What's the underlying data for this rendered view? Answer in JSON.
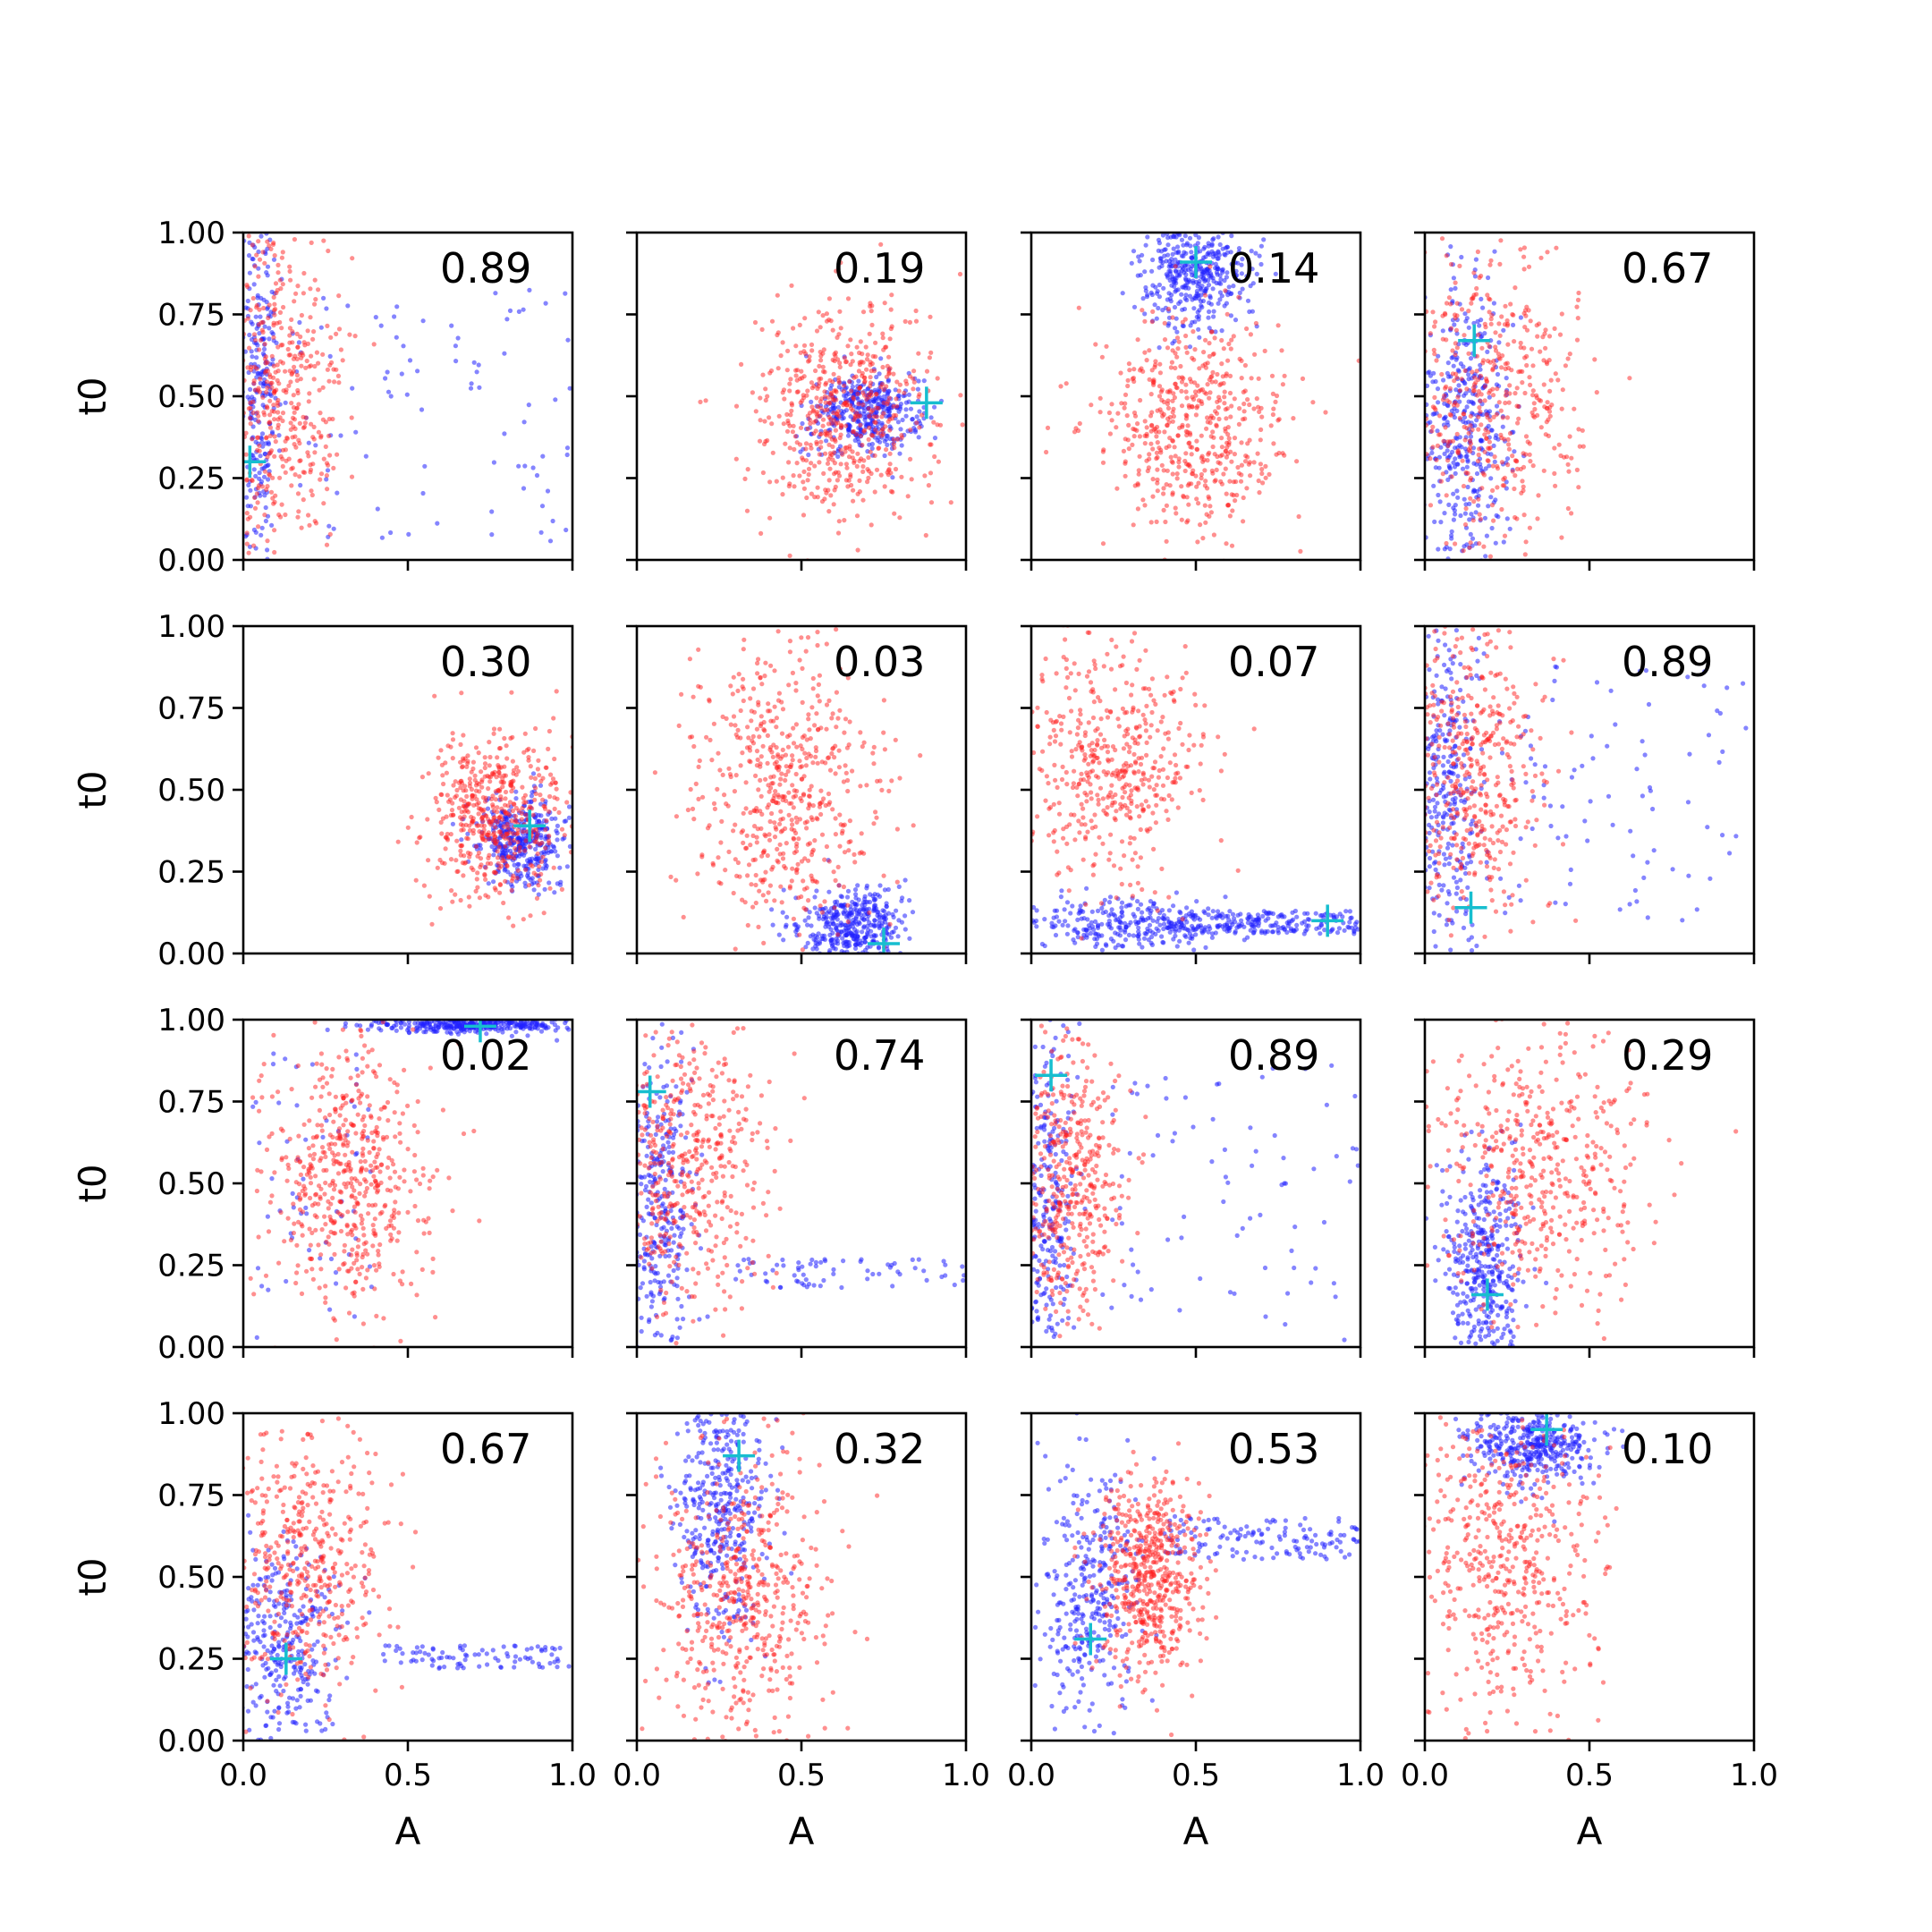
{
  "figure": {
    "title": "",
    "xlabel": "A",
    "ylabel": "t0"
  },
  "colors": {
    "series_red": "#ff2020",
    "series_blue": "#2020ff",
    "marker": "#17becf"
  },
  "chart_data": [
    {
      "type": "scatter",
      "value_label": "0.89",
      "xlim": [
        0,
        1
      ],
      "ylim": [
        0,
        1
      ],
      "xticks": [
        "0.0",
        "0.5",
        "1.0"
      ],
      "yticks": [
        "0.00",
        "0.25",
        "0.50",
        "0.75",
        "1.00"
      ],
      "xlabel": "A",
      "ylabel": "t0",
      "marker": {
        "x": 0.02,
        "y": 0.3
      },
      "red": {
        "x_mean": 0.11,
        "x_sd": 0.09,
        "y_mean": 0.5,
        "y_sd": 0.24,
        "n": 450
      },
      "blue": {
        "x_mean": 0.05,
        "x_sd": 0.03,
        "y_mean": 0.55,
        "y_sd": 0.28,
        "n": 240,
        "tail": {
          "n": 90,
          "x_range": [
            0.15,
            1.0
          ],
          "y_range": [
            0.05,
            0.85
          ]
        }
      }
    },
    {
      "type": "scatter",
      "value_label": "0.19",
      "xlim": [
        0,
        1
      ],
      "ylim": [
        0,
        1
      ],
      "xticks": [
        "0.0",
        "0.5",
        "1.0"
      ],
      "yticks": [
        "0.00",
        "0.25",
        "0.50",
        "0.75",
        "1.00"
      ],
      "xlabel": "A",
      "ylabel": "t0",
      "marker": {
        "x": 0.88,
        "y": 0.48
      },
      "red": {
        "x_mean": 0.62,
        "x_sd": 0.13,
        "y_mean": 0.45,
        "y_sd": 0.16,
        "n": 560
      },
      "blue": {
        "x_mean": 0.7,
        "x_sd": 0.08,
        "y_mean": 0.45,
        "y_sd": 0.06,
        "n": 380
      }
    },
    {
      "type": "scatter",
      "value_label": "0.14",
      "xlim": [
        0,
        1
      ],
      "ylim": [
        0,
        1
      ],
      "xticks": [
        "0.0",
        "0.5",
        "1.0"
      ],
      "yticks": [
        "0.00",
        "0.25",
        "0.50",
        "0.75",
        "1.00"
      ],
      "xlabel": "A",
      "ylabel": "t0",
      "marker": {
        "x": 0.5,
        "y": 0.91
      },
      "red": {
        "x_mean": 0.48,
        "x_sd": 0.14,
        "y_mean": 0.4,
        "y_sd": 0.17,
        "n": 540
      },
      "blue": {
        "x_mean": 0.5,
        "x_sd": 0.08,
        "y_mean": 0.88,
        "y_sd": 0.08,
        "n": 420
      }
    },
    {
      "type": "scatter",
      "value_label": "0.67",
      "xlim": [
        0,
        1
      ],
      "ylim": [
        0,
        1
      ],
      "xticks": [
        "0.0",
        "0.5",
        "1.0"
      ],
      "yticks": [
        "0.00",
        "0.25",
        "0.50",
        "0.75",
        "1.00"
      ],
      "xlabel": "A",
      "ylabel": "t0",
      "marker": {
        "x": 0.15,
        "y": 0.67
      },
      "red": {
        "x_mean": 0.2,
        "x_sd": 0.14,
        "y_mean": 0.5,
        "y_sd": 0.22,
        "n": 480
      },
      "blue": {
        "x_mean": 0.13,
        "x_sd": 0.07,
        "y_mean": 0.4,
        "y_sd": 0.22,
        "n": 380
      }
    },
    {
      "type": "scatter",
      "value_label": "0.30",
      "xlim": [
        0,
        1
      ],
      "ylim": [
        0,
        1
      ],
      "xticks": [
        "0.0",
        "0.5",
        "1.0"
      ],
      "yticks": [
        "0.00",
        "0.25",
        "0.50",
        "0.75",
        "1.00"
      ],
      "xlabel": "A",
      "ylabel": "t0",
      "marker": {
        "x": 0.87,
        "y": 0.39
      },
      "red": {
        "x_mean": 0.76,
        "x_sd": 0.1,
        "y_mean": 0.42,
        "y_sd": 0.13,
        "n": 520
      },
      "blue": {
        "x_mean": 0.84,
        "x_sd": 0.07,
        "y_mean": 0.35,
        "y_sd": 0.07,
        "n": 380
      }
    },
    {
      "type": "scatter",
      "value_label": "0.03",
      "xlim": [
        0,
        1
      ],
      "ylim": [
        0,
        1
      ],
      "xticks": [
        "0.0",
        "0.5",
        "1.0"
      ],
      "yticks": [
        "0.00",
        "0.25",
        "0.50",
        "0.75",
        "1.00"
      ],
      "xlabel": "A",
      "ylabel": "t0",
      "marker": {
        "x": 0.75,
        "y": 0.03
      },
      "red": {
        "x_mean": 0.45,
        "x_sd": 0.14,
        "y_mean": 0.52,
        "y_sd": 0.22,
        "n": 560
      },
      "blue": {
        "x_mean": 0.65,
        "x_sd": 0.08,
        "y_mean": 0.08,
        "y_sd": 0.06,
        "n": 420
      }
    },
    {
      "type": "scatter",
      "value_label": "0.07",
      "xlim": [
        0,
        1
      ],
      "ylim": [
        0,
        1
      ],
      "xticks": [
        "0.0",
        "0.5",
        "1.0"
      ],
      "yticks": [
        "0.00",
        "0.25",
        "0.50",
        "0.75",
        "1.00"
      ],
      "xlabel": "A",
      "ylabel": "t0",
      "marker": {
        "x": 0.9,
        "y": 0.1
      },
      "red": {
        "x_mean": 0.25,
        "x_sd": 0.14,
        "y_mean": 0.58,
        "y_sd": 0.18,
        "n": 480
      },
      "blue": {
        "x_mean": 0.3,
        "x_sd": 0.15,
        "y_mean": 0.09,
        "y_sd": 0.04,
        "n": 260,
        "tail": {
          "n": 220,
          "x_range": [
            0.4,
            1.0
          ],
          "y_range": [
            0.06,
            0.13
          ]
        }
      }
    },
    {
      "type": "scatter",
      "value_label": "0.89",
      "xlim": [
        0,
        1
      ],
      "ylim": [
        0,
        1
      ],
      "xticks": [
        "0.0",
        "0.5",
        "1.0"
      ],
      "yticks": [
        "0.00",
        "0.25",
        "0.50",
        "0.75",
        "1.00"
      ],
      "xlabel": "A",
      "ylabel": "t0",
      "marker": {
        "x": 0.14,
        "y": 0.14
      },
      "red": {
        "x_mean": 0.15,
        "x_sd": 0.1,
        "y_mean": 0.55,
        "y_sd": 0.22,
        "n": 440
      },
      "blue": {
        "x_mean": 0.07,
        "x_sd": 0.05,
        "y_mean": 0.5,
        "y_sd": 0.26,
        "n": 300,
        "tail": {
          "n": 90,
          "x_range": [
            0.2,
            1.0
          ],
          "y_range": [
            0.1,
            0.9
          ]
        }
      }
    },
    {
      "type": "scatter",
      "value_label": "0.02",
      "xlim": [
        0,
        1
      ],
      "ylim": [
        0,
        1
      ],
      "xticks": [
        "0.0",
        "0.5",
        "1.0"
      ],
      "yticks": [
        "0.00",
        "0.25",
        "0.50",
        "0.75",
        "1.00"
      ],
      "xlabel": "A",
      "ylabel": "t0",
      "marker": {
        "x": 0.72,
        "y": 0.98
      },
      "red": {
        "x_mean": 0.32,
        "x_sd": 0.12,
        "y_mean": 0.52,
        "y_sd": 0.2,
        "n": 540
      },
      "blue": {
        "x_mean": 0.72,
        "x_sd": 0.16,
        "y_mean": 0.985,
        "y_sd": 0.012,
        "n": 360,
        "tail": {
          "n": 60,
          "x_range": [
            0.0,
            0.4
          ],
          "y_range": [
            0.0,
            0.9
          ]
        }
      }
    },
    {
      "type": "scatter",
      "value_label": "0.74",
      "xlim": [
        0,
        1
      ],
      "ylim": [
        0,
        1
      ],
      "xticks": [
        "0.0",
        "0.5",
        "1.0"
      ],
      "yticks": [
        "0.00",
        "0.25",
        "0.50",
        "0.75",
        "1.00"
      ],
      "xlabel": "A",
      "ylabel": "t0",
      "marker": {
        "x": 0.04,
        "y": 0.78
      },
      "red": {
        "x_mean": 0.16,
        "x_sd": 0.12,
        "y_mean": 0.55,
        "y_sd": 0.22,
        "n": 480
      },
      "blue": {
        "x_mean": 0.07,
        "x_sd": 0.05,
        "y_mean": 0.4,
        "y_sd": 0.25,
        "n": 320,
        "tail": {
          "n": 70,
          "x_range": [
            0.3,
            1.0
          ],
          "y_range": [
            0.18,
            0.27
          ]
        }
      }
    },
    {
      "type": "scatter",
      "value_label": "0.89",
      "xlim": [
        0,
        1
      ],
      "ylim": [
        0,
        1
      ],
      "xticks": [
        "0.0",
        "0.5",
        "1.0"
      ],
      "yticks": [
        "0.00",
        "0.25",
        "0.50",
        "0.75",
        "1.00"
      ],
      "xlabel": "A",
      "ylabel": "t0",
      "marker": {
        "x": 0.06,
        "y": 0.83
      },
      "red": {
        "x_mean": 0.12,
        "x_sd": 0.08,
        "y_mean": 0.5,
        "y_sd": 0.22,
        "n": 440
      },
      "blue": {
        "x_mean": 0.05,
        "x_sd": 0.04,
        "y_mean": 0.45,
        "y_sd": 0.28,
        "n": 300,
        "tail": {
          "n": 80,
          "x_range": [
            0.2,
            1.0
          ],
          "y_range": [
            0.0,
            0.9
          ]
        }
      }
    },
    {
      "type": "scatter",
      "value_label": "0.29",
      "xlim": [
        0,
        1
      ],
      "ylim": [
        0,
        1
      ],
      "xticks": [
        "0.0",
        "0.5",
        "1.0"
      ],
      "yticks": [
        "0.00",
        "0.25",
        "0.50",
        "0.75",
        "1.00"
      ],
      "xlabel": "A",
      "ylabel": "t0",
      "marker": {
        "x": 0.19,
        "y": 0.16
      },
      "red": {
        "x_mean": 0.35,
        "x_sd": 0.17,
        "y_mean": 0.55,
        "y_sd": 0.22,
        "n": 480
      },
      "blue": {
        "x_mean": 0.18,
        "x_sd": 0.06,
        "y_mean": 0.25,
        "y_sd": 0.17,
        "n": 400
      }
    },
    {
      "type": "scatter",
      "value_label": "0.67",
      "xlim": [
        0,
        1
      ],
      "ylim": [
        0,
        1
      ],
      "xticks": [
        "0.0",
        "0.5",
        "1.0"
      ],
      "yticks": [
        "0.00",
        "0.25",
        "0.50",
        "0.75",
        "1.00"
      ],
      "xlabel": "A",
      "ylabel": "t0",
      "marker": {
        "x": 0.13,
        "y": 0.25
      },
      "red": {
        "x_mean": 0.18,
        "x_sd": 0.12,
        "y_mean": 0.55,
        "y_sd": 0.22,
        "n": 460
      },
      "blue": {
        "x_mean": 0.12,
        "x_sd": 0.08,
        "y_mean": 0.28,
        "y_sd": 0.18,
        "n": 320,
        "tail": {
          "n": 90,
          "x_range": [
            0.4,
            1.0
          ],
          "y_range": [
            0.22,
            0.29
          ]
        }
      }
    },
    {
      "type": "scatter",
      "value_label": "0.32",
      "xlim": [
        0,
        1
      ],
      "ylim": [
        0,
        1
      ],
      "xticks": [
        "0.0",
        "0.5",
        "1.0"
      ],
      "yticks": [
        "0.00",
        "0.25",
        "0.50",
        "0.75",
        "1.00"
      ],
      "xlabel": "A",
      "ylabel": "t0",
      "marker": {
        "x": 0.31,
        "y": 0.87
      },
      "red": {
        "x_mean": 0.32,
        "x_sd": 0.13,
        "y_mean": 0.45,
        "y_sd": 0.22,
        "n": 520
      },
      "blue": {
        "x_mean": 0.26,
        "x_sd": 0.07,
        "y_mean": 0.72,
        "y_sd": 0.2,
        "n": 400
      }
    },
    {
      "type": "scatter",
      "value_label": "0.53",
      "xlim": [
        0,
        1
      ],
      "ylim": [
        0,
        1
      ],
      "xticks": [
        "0.0",
        "0.5",
        "1.0"
      ],
      "yticks": [
        "0.00",
        "0.25",
        "0.50",
        "0.75",
        "1.00"
      ],
      "xlabel": "A",
      "ylabel": "t0",
      "marker": {
        "x": 0.18,
        "y": 0.31
      },
      "red": {
        "x_mean": 0.36,
        "x_sd": 0.08,
        "y_mean": 0.5,
        "y_sd": 0.15,
        "n": 560
      },
      "blue": {
        "x_mean": 0.18,
        "x_sd": 0.08,
        "y_mean": 0.45,
        "y_sd": 0.2,
        "n": 340,
        "tail": {
          "n": 140,
          "x_range": [
            0.4,
            1.0
          ],
          "y_range": [
            0.55,
            0.68
          ]
        }
      }
    },
    {
      "type": "scatter",
      "value_label": "0.10",
      "xlim": [
        0,
        1
      ],
      "ylim": [
        0,
        1
      ],
      "xticks": [
        "0.0",
        "0.5",
        "1.0"
      ],
      "yticks": [
        "0.00",
        "0.25",
        "0.50",
        "0.75",
        "1.00"
      ],
      "xlabel": "A",
      "ylabel": "t0",
      "marker": {
        "x": 0.37,
        "y": 0.95
      },
      "red": {
        "x_mean": 0.24,
        "x_sd": 0.14,
        "y_mean": 0.55,
        "y_sd": 0.24,
        "n": 500
      },
      "blue": {
        "x_mean": 0.33,
        "x_sd": 0.1,
        "y_mean": 0.9,
        "y_sd": 0.06,
        "n": 400
      }
    }
  ]
}
